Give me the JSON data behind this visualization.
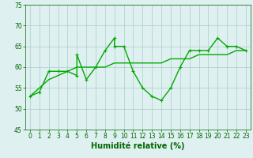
{
  "xlabel": "Humidité relative (%)",
  "bg_color": "#dff0f0",
  "grid_color": "#aacccc",
  "line_color": "#00aa00",
  "tick_color": "#006600",
  "xlim": [
    -0.5,
    23.5
  ],
  "ylim": [
    45,
    75
  ],
  "yticks": [
    45,
    50,
    55,
    60,
    65,
    70,
    75
  ],
  "xticks": [
    0,
    1,
    2,
    3,
    4,
    5,
    6,
    7,
    8,
    9,
    10,
    11,
    12,
    13,
    14,
    15,
    16,
    17,
    18,
    19,
    20,
    21,
    22,
    23
  ],
  "series1_x": [
    0,
    1,
    2,
    3,
    4,
    5,
    5,
    6,
    7,
    8,
    9,
    9,
    10,
    11,
    12,
    13,
    14,
    15,
    16,
    17,
    18,
    19,
    20,
    21,
    22,
    23
  ],
  "series1_y": [
    53,
    54,
    59,
    59,
    59,
    58,
    63,
    57,
    60,
    64,
    67,
    65,
    65,
    59,
    55,
    53,
    52,
    55,
    60,
    64,
    64,
    64,
    67,
    65,
    65,
    64
  ],
  "series2_x": [
    0,
    1,
    2,
    3,
    4,
    5,
    6,
    7,
    8,
    9,
    10,
    11,
    12,
    13,
    14,
    15,
    16,
    17,
    18,
    19,
    20,
    21,
    22,
    23
  ],
  "series2_y": [
    53,
    55,
    57,
    58,
    59,
    60,
    60,
    60,
    60,
    61,
    61,
    61,
    61,
    61,
    61,
    62,
    62,
    62,
    63,
    63,
    63,
    63,
    64,
    64
  ],
  "xlabel_fontsize": 7,
  "tick_fontsize": 5.5,
  "linewidth": 1.0,
  "marker": "+",
  "markersize": 3.5,
  "markeredgewidth": 0.8
}
